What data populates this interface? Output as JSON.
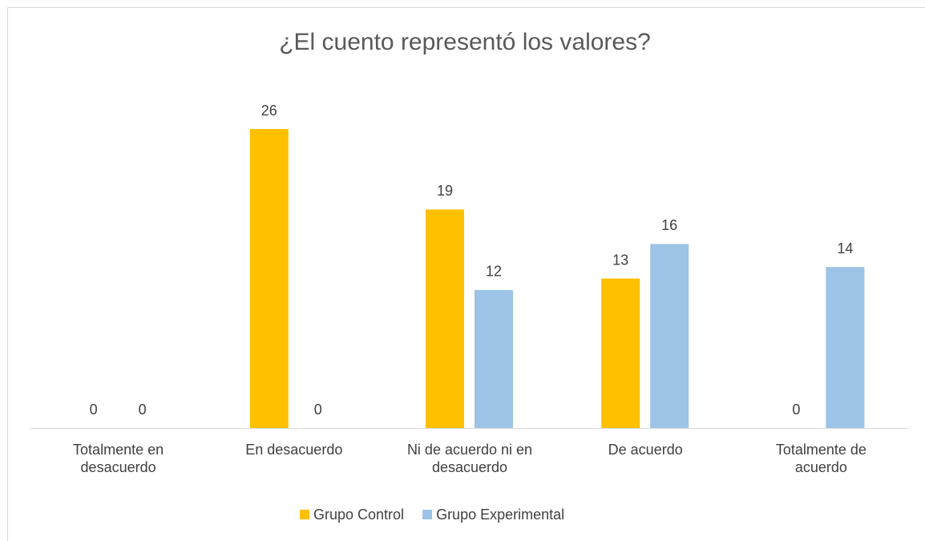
{
  "chart_data": {
    "type": "bar",
    "title": "¿El cuento representó los valores?",
    "categories": [
      "Totalmente en desacuerdo",
      "En desacuerdo",
      "Ni de acuerdo ni en desacuerdo",
      "De acuerdo",
      "Totalmente de acuerdo"
    ],
    "series": [
      {
        "name": "Grupo Control",
        "color": "#ffc000",
        "values": [
          0,
          26,
          19,
          13,
          0
        ]
      },
      {
        "name": "Grupo Experimental",
        "color": "#9dc3e6",
        "values": [
          0,
          0,
          12,
          16,
          14
        ]
      }
    ],
    "legend": "bottom"
  }
}
